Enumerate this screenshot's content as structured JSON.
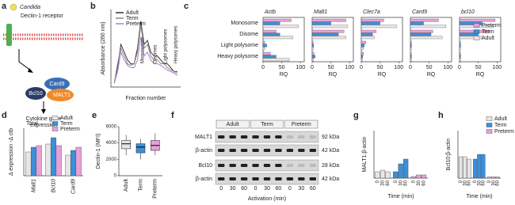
{
  "panel_labels": [
    "a",
    "b",
    "c",
    "d",
    "e",
    "f",
    "g",
    "h"
  ],
  "diagram": {
    "pathogen": "Candida",
    "receptor": "Dectin-1 receptor",
    "nodes": [
      "Card9",
      "Bcl10",
      "MALT1"
    ],
    "output": [
      "Cytokine gene",
      "expression"
    ]
  },
  "blot": {
    "groups": [
      "Adult",
      "Term",
      "Preterm"
    ],
    "rows": [
      {
        "label": "MALT1",
        "size": "92 kDa"
      },
      {
        "label": "β-actin",
        "size": "42 kDa"
      },
      {
        "label": "Bcl10",
        "size": "28 kDa"
      },
      {
        "label": "β-actin",
        "size": "42 kDa"
      }
    ],
    "times": [
      "0",
      "30",
      "60"
    ],
    "xlabel": "Activation (min)"
  },
  "chart_data": [
    {
      "type": "line",
      "xlabel": "Fraction number",
      "ylabel": "Absorbance (260 nm)",
      "annotations": [
        "Monosomes",
        "Disomes",
        "Light polysomes",
        "Heavy polysomes"
      ],
      "x": [
        1,
        2,
        3,
        4,
        5,
        6,
        7,
        8,
        9,
        10,
        11,
        12,
        13,
        14,
        15,
        16,
        17,
        18,
        19,
        20
      ],
      "xlim": [
        0,
        21
      ],
      "ylim": [
        0,
        1
      ],
      "series": [
        {
          "name": "Adult",
          "color": "#333333",
          "values": [
            0.05,
            0.25,
            0.55,
            0.45,
            0.35,
            0.3,
            0.3,
            0.5,
            0.85,
            0.55,
            0.6,
            0.45,
            0.4,
            0.4,
            0.35,
            0.3,
            0.3,
            0.25,
            0.2,
            0.2
          ]
        },
        {
          "name": "Term",
          "color": "#8a8a8a",
          "values": [
            0.05,
            0.3,
            0.5,
            0.4,
            0.3,
            0.28,
            0.3,
            0.45,
            0.8,
            0.5,
            0.55,
            0.4,
            0.35,
            0.35,
            0.3,
            0.3,
            0.25,
            0.22,
            0.2,
            0.18
          ]
        },
        {
          "name": "Preterm",
          "color": "#a77fd0",
          "values": [
            0.05,
            0.2,
            0.45,
            0.35,
            0.28,
            0.25,
            0.25,
            0.35,
            0.65,
            0.4,
            0.45,
            0.35,
            0.3,
            0.3,
            0.28,
            0.25,
            0.22,
            0.2,
            0.18,
            0.15
          ]
        }
      ]
    },
    {
      "type": "hbar-panels",
      "categories": [
        "Monosome",
        "Disome",
        "Light polysome",
        "Heavy polysome"
      ],
      "xlabel": "RQ",
      "xlim": [
        0,
        110
      ],
      "xticks": [
        0,
        50,
        100
      ],
      "series": [
        {
          "name": "Preterm",
          "color": "#e8a0d8"
        },
        {
          "name": "Term",
          "color": "#3d8fd9"
        },
        {
          "name": "Adult",
          "color": "#e6e6e6"
        }
      ],
      "panels": [
        {
          "title": "Actb",
          "values": [
            [
              75,
              35,
              5,
              20
            ],
            [
              45,
              45,
              10,
              35
            ],
            [
              95,
              80,
              5,
              70
            ]
          ]
        },
        {
          "title": "Malt1",
          "values": [
            [
              90,
              85,
              3,
              5
            ],
            [
              50,
              70,
              4,
              8
            ],
            [
              95,
              90,
              3,
              4
            ]
          ]
        },
        {
          "title": "Clec7a",
          "values": [
            [
              60,
              40,
              12,
              6
            ],
            [
              50,
              30,
              8,
              4
            ],
            [
              95,
              35,
              6,
              3
            ]
          ]
        },
        {
          "title": "Card9",
          "values": [
            [
              75,
              60,
              3,
              3
            ],
            [
              35,
              55,
              3,
              3
            ],
            [
              95,
              85,
              3,
              3
            ]
          ]
        },
        {
          "title": "bcl10",
          "values": [
            [
              95,
              80,
              3,
              3
            ],
            [
              60,
              50,
              3,
              3
            ],
            [
              90,
              60,
              3,
              3
            ]
          ]
        }
      ]
    },
    {
      "type": "grouped-bar",
      "subtitle": "Total",
      "ylabel": "Δ expression -Δ ctb",
      "categories": [
        "Malt1",
        "Bcl10",
        "Card9"
      ],
      "ylim": [
        0,
        15
      ],
      "series": [
        {
          "name": "Adult",
          "color": "#e6e6e6",
          "values": [
            7.5,
            10,
            6.5
          ]
        },
        {
          "name": "Term",
          "color": "#3d8fd9",
          "values": [
            9,
            12,
            8
          ]
        },
        {
          "name": "Preterm",
          "color": "#e8a0d8",
          "values": [
            9.5,
            9.5,
            9
          ]
        }
      ]
    },
    {
      "type": "box",
      "ylabel": "Dectin-1 (MFI)",
      "categories": [
        "Adult",
        "Term",
        "Preterm"
      ],
      "colors": [
        "#e6e6e6",
        "#3d8fd9",
        "#e8a0d8"
      ],
      "ylim": [
        0,
        6000
      ],
      "yticks": [
        0,
        2000,
        4000,
        6000
      ],
      "boxes": [
        {
          "min": 2500,
          "q1": 3300,
          "median": 3900,
          "q3": 4300,
          "max": 5000
        },
        {
          "min": 2000,
          "q1": 2800,
          "median": 3500,
          "q3": 3900,
          "max": 4500
        },
        {
          "min": 2500,
          "q1": 3100,
          "median": 3700,
          "q3": 4300,
          "max": 5200
        }
      ]
    },
    {
      "type": "time-bar",
      "ylabel": "MALT1:β-actin",
      "xlabel": "Time (min)",
      "categories": [
        "0",
        "30",
        "60"
      ],
      "ylim": [
        0,
        1.5
      ],
      "series": [
        {
          "name": "Adult",
          "color": "#e6e6e6",
          "values": [
            0.2,
            0.25,
            0.2
          ]
        },
        {
          "name": "Term",
          "color": "#3d8fd9",
          "values": [
            0.2,
            0.45,
            0.6
          ]
        },
        {
          "name": "Preterm",
          "color": "#e8a0d8",
          "values": [
            0.05,
            0.1,
            0.1
          ]
        }
      ]
    },
    {
      "type": "time-bar",
      "ylabel": "Bcl10:β-actin",
      "xlabel": "Time (min)",
      "categories": [
        "0",
        "30",
        "60"
      ],
      "ylim": [
        0,
        2
      ],
      "legend": true,
      "series": [
        {
          "name": "Adult",
          "color": "#e6e6e6",
          "values": [
            0.9,
            0.9,
            0.8
          ]
        },
        {
          "name": "Term",
          "color": "#3d8fd9",
          "values": [
            0.8,
            1.0,
            1.0
          ]
        },
        {
          "name": "Preterm",
          "color": "#e8a0d8",
          "values": [
            0.05,
            0.05,
            0.05
          ]
        }
      ]
    }
  ]
}
